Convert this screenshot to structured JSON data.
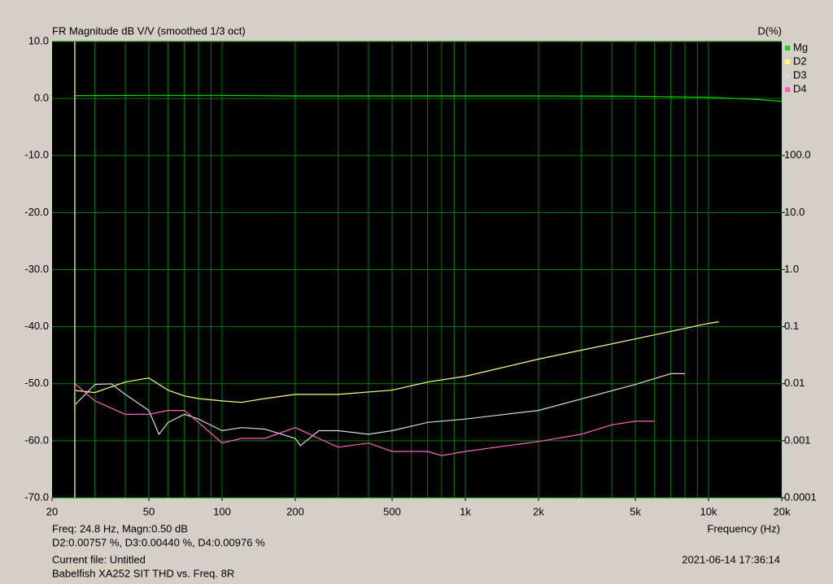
{
  "chart_data": {
    "type": "line",
    "title": "FR Magnitude dB V/V (smoothed 1/3 oct)",
    "y2_title": "D(%)",
    "x_label": "Frequency (Hz)",
    "xscale": "log",
    "y2scale": "log",
    "grid": true,
    "legend": "top-right",
    "xlim": [
      20,
      20000
    ],
    "ylim": [
      -70,
      10
    ],
    "y2lim": [
      0.0001,
      10000
    ],
    "xticks": [
      20,
      50,
      100,
      200,
      500,
      {
        "value": 1000,
        "label": "1k"
      },
      {
        "value": 2000,
        "label": "2k"
      },
      {
        "value": 5000,
        "label": "5k"
      },
      {
        "value": 10000,
        "label": "10k"
      },
      {
        "value": 20000,
        "label": "20k"
      }
    ],
    "xgrid": [
      30,
      40,
      50,
      60,
      70,
      80,
      90,
      100,
      200,
      300,
      400,
      500,
      600,
      700,
      800,
      900,
      1000,
      2000,
      3000,
      4000,
      5000,
      6000,
      7000,
      8000,
      9000,
      10000
    ],
    "yticks": [
      {
        "value": 10,
        "label": "10.0"
      },
      {
        "value": 0,
        "label": "0.0"
      },
      {
        "value": -10,
        "label": "-10.0"
      },
      {
        "value": -20,
        "label": "-20.0"
      },
      {
        "value": -30,
        "label": "-30.0"
      },
      {
        "value": -40,
        "label": "-40.0"
      },
      {
        "value": -50,
        "label": "-50.0"
      },
      {
        "value": -60,
        "label": "-60.0"
      },
      {
        "value": -70,
        "label": "-70.0"
      }
    ],
    "y2ticks": [
      {
        "value": 100,
        "label": "100.0"
      },
      {
        "value": 10,
        "label": "10.0"
      },
      {
        "value": 1,
        "label": "1.0"
      },
      0.1,
      0.01,
      0.001,
      0.0001
    ],
    "cursor": 24.8,
    "series": [
      {
        "name": "Mg",
        "color": "#00e000",
        "axis": "y",
        "x": [
          25,
          50,
          100,
          200,
          500,
          1000,
          2000,
          5000,
          10000,
          15000,
          20000
        ],
        "values": [
          0.5,
          0.55,
          0.55,
          0.45,
          0.45,
          0.45,
          0.45,
          0.4,
          0.2,
          -0.1,
          -0.5
        ]
      },
      {
        "name": "D2",
        "color": "#ffff80",
        "axis": "y2",
        "x": [
          25,
          30,
          40,
          50,
          60,
          70,
          80,
          100,
          120,
          150,
          200,
          300,
          500,
          700,
          1000,
          2000,
          5000,
          10000,
          11000
        ],
        "values": [
          0.0076,
          0.007,
          0.0107,
          0.0126,
          0.0077,
          0.0061,
          0.0055,
          0.005,
          0.0047,
          0.0055,
          0.0065,
          0.0065,
          0.0077,
          0.0107,
          0.0135,
          0.027,
          0.061,
          0.114,
          0.122
        ]
      },
      {
        "name": "D3",
        "color": "#d8d8d8",
        "axis": "y2",
        "x": [
          25,
          30,
          35,
          40,
          50,
          55,
          60,
          70,
          80,
          100,
          120,
          150,
          200,
          210,
          250,
          300,
          400,
          500,
          700,
          1000,
          2000,
          5000,
          7000,
          8000
        ],
        "values": [
          0.0044,
          0.0097,
          0.01,
          0.0065,
          0.0034,
          0.0013,
          0.0021,
          0.0029,
          0.0024,
          0.0015,
          0.0017,
          0.0016,
          0.0011,
          0.00082,
          0.0015,
          0.0015,
          0.0013,
          0.0015,
          0.0021,
          0.0024,
          0.0034,
          0.0097,
          0.015,
          0.015
        ]
      },
      {
        "name": "D4",
        "color": "#ff60c0",
        "axis": "y2",
        "x": [
          25,
          30,
          40,
          50,
          60,
          70,
          80,
          100,
          120,
          150,
          200,
          250,
          300,
          400,
          500,
          700,
          800,
          1000,
          2000,
          3000,
          4000,
          5000,
          6000
        ],
        "values": [
          0.0098,
          0.005,
          0.0029,
          0.0029,
          0.0034,
          0.0034,
          0.0021,
          0.00091,
          0.0011,
          0.0011,
          0.0017,
          0.0011,
          0.00077,
          0.00091,
          0.00065,
          0.00065,
          0.00055,
          0.00065,
          0.00097,
          0.0013,
          0.0019,
          0.0022,
          0.0022
        ]
      }
    ],
    "annotations": [
      "Freq: 24.8 Hz, Magn:0.50 dB",
      "D2:0.00757 %, D3:0.00440 %, D4:0.00976 %",
      "Current file: Untitled",
      "Babelfish XA252 SIT THD vs. Freq.  8R",
      "2021-06-14  17:36:14"
    ]
  }
}
